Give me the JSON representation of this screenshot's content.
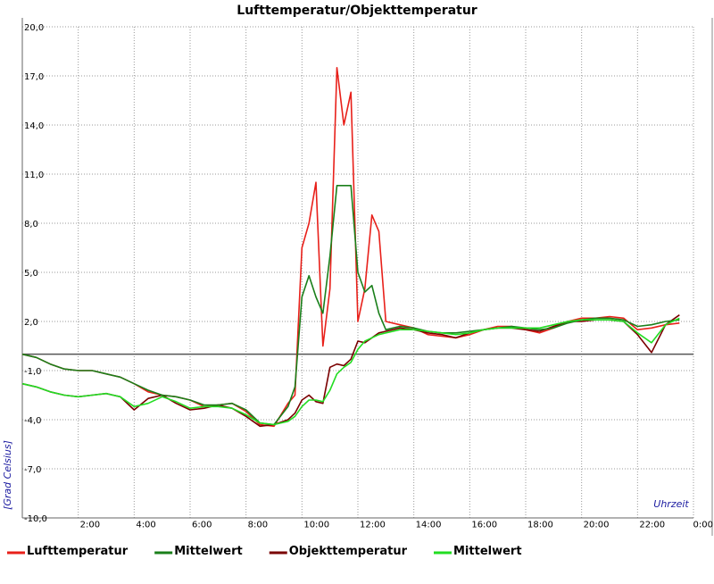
{
  "chart_data": {
    "type": "line",
    "title": "Lufttemperatur/Objekttemperatur",
    "y_label": "[Grad Celsius]",
    "x_label": "Uhrzeit",
    "grid": true,
    "zero_line": true,
    "legend": "bottom",
    "xlim": [
      0,
      24
    ],
    "ylim": [
      -10,
      20
    ],
    "xticks": [
      {
        "value": 2,
        "label": "2:00"
      },
      {
        "value": 4,
        "label": "4:00"
      },
      {
        "value": 6,
        "label": "6:00"
      },
      {
        "value": 8,
        "label": "8:00"
      },
      {
        "value": 10,
        "label": "10:00"
      },
      {
        "value": 12,
        "label": "12:00"
      },
      {
        "value": 14,
        "label": "14:00"
      },
      {
        "value": 16,
        "label": "16:00"
      },
      {
        "value": 18,
        "label": "18:00"
      },
      {
        "value": 20,
        "label": "20:00"
      },
      {
        "value": 22,
        "label": "22:00"
      },
      {
        "value": 24,
        "label": "0:00"
      }
    ],
    "yticks": [
      {
        "value": -10,
        "label": "-10,0"
      },
      {
        "value": -7,
        "label": "-7,0"
      },
      {
        "value": -4,
        "label": "-4,0"
      },
      {
        "value": -1,
        "label": "-1,0"
      },
      {
        "value": 2,
        "label": "2,0"
      },
      {
        "value": 5,
        "label": "5,0"
      },
      {
        "value": 8,
        "label": "8,0"
      },
      {
        "value": 11,
        "label": "11,0"
      },
      {
        "value": 14,
        "label": "14,0"
      },
      {
        "value": 17,
        "label": "17,0"
      },
      {
        "value": 20,
        "label": "20,0"
      }
    ],
    "x": [
      0,
      0.5,
      1,
      1.5,
      2,
      2.5,
      3,
      3.5,
      4,
      4.5,
      5,
      5.5,
      6,
      6.5,
      7,
      7.5,
      8,
      8.5,
      9,
      9.5,
      9.75,
      10,
      10.25,
      10.5,
      10.75,
      11,
      11.25,
      11.5,
      11.75,
      12,
      12.25,
      12.5,
      12.75,
      13,
      13.5,
      14,
      14.5,
      15,
      15.5,
      16,
      16.5,
      17,
      17.5,
      18,
      18.5,
      19,
      19.5,
      20,
      20.5,
      21,
      21.5,
      22,
      22.5,
      23,
      23.5
    ],
    "series": [
      {
        "name": "Lufttemperatur",
        "color": "#e8201a",
        "values": [
          0,
          -0.2,
          -0.6,
          -0.9,
          -1.0,
          -1.0,
          -1.2,
          -1.4,
          -1.8,
          -2.3,
          -2.5,
          -2.6,
          -2.8,
          -3.2,
          -3.1,
          -3.0,
          -3.5,
          -4.3,
          -4.4,
          -3.0,
          -2.5,
          6.5,
          8.0,
          10.5,
          0.5,
          4.0,
          17.5,
          14.0,
          16.0,
          2.0,
          4.0,
          8.5,
          7.5,
          2.0,
          1.8,
          1.6,
          1.2,
          1.1,
          1.0,
          1.2,
          1.5,
          1.7,
          1.7,
          1.5,
          1.3,
          1.6,
          2.0,
          2.2,
          2.2,
          2.3,
          2.2,
          1.5,
          1.6,
          1.8,
          1.9
        ]
      },
      {
        "name": "Mittelwert",
        "color": "#1a7f1a",
        "values": [
          0,
          -0.2,
          -0.6,
          -0.9,
          -1.0,
          -1.0,
          -1.2,
          -1.4,
          -1.8,
          -2.2,
          -2.5,
          -2.6,
          -2.8,
          -3.1,
          -3.1,
          -3.0,
          -3.4,
          -4.2,
          -4.3,
          -3.2,
          -2.0,
          3.5,
          4.8,
          3.5,
          2.5,
          6.0,
          10.3,
          10.3,
          10.3,
          5.0,
          3.8,
          4.2,
          2.5,
          1.5,
          1.7,
          1.6,
          1.4,
          1.3,
          1.3,
          1.4,
          1.5,
          1.6,
          1.7,
          1.6,
          1.5,
          1.6,
          1.9,
          2.1,
          2.2,
          2.2,
          2.1,
          1.7,
          1.8,
          2.0,
          2.1
        ]
      },
      {
        "name": "Objekttemperatur",
        "color": "#7a0000",
        "values": [
          -1.8,
          -2.0,
          -2.3,
          -2.5,
          -2.6,
          -2.5,
          -2.4,
          -2.6,
          -3.4,
          -2.7,
          -2.5,
          -3.0,
          -3.4,
          -3.3,
          -3.1,
          -3.3,
          -3.8,
          -4.4,
          -4.3,
          -4.0,
          -3.6,
          -2.8,
          -2.5,
          -2.9,
          -3.0,
          -0.8,
          -0.6,
          -0.7,
          -0.3,
          0.8,
          0.7,
          1.0,
          1.3,
          1.4,
          1.6,
          1.5,
          1.3,
          1.2,
          1.0,
          1.3,
          1.5,
          1.6,
          1.6,
          1.5,
          1.4,
          1.7,
          2.0,
          2.0,
          2.1,
          2.1,
          2.0,
          1.2,
          0.1,
          1.8,
          2.4
        ]
      },
      {
        "name": "Mittelwert",
        "color": "#22dd22",
        "values": [
          -1.8,
          -2.0,
          -2.3,
          -2.5,
          -2.6,
          -2.5,
          -2.4,
          -2.6,
          -3.2,
          -3.0,
          -2.6,
          -2.9,
          -3.3,
          -3.2,
          -3.2,
          -3.3,
          -3.7,
          -4.2,
          -4.3,
          -4.1,
          -3.8,
          -3.2,
          -2.8,
          -2.8,
          -2.9,
          -2.2,
          -1.2,
          -0.8,
          -0.5,
          0.3,
          0.8,
          1.0,
          1.2,
          1.3,
          1.5,
          1.5,
          1.4,
          1.3,
          1.2,
          1.3,
          1.5,
          1.6,
          1.6,
          1.6,
          1.6,
          1.8,
          2.0,
          2.1,
          2.1,
          2.1,
          2.0,
          1.3,
          0.7,
          1.8,
          2.2
        ]
      }
    ]
  }
}
